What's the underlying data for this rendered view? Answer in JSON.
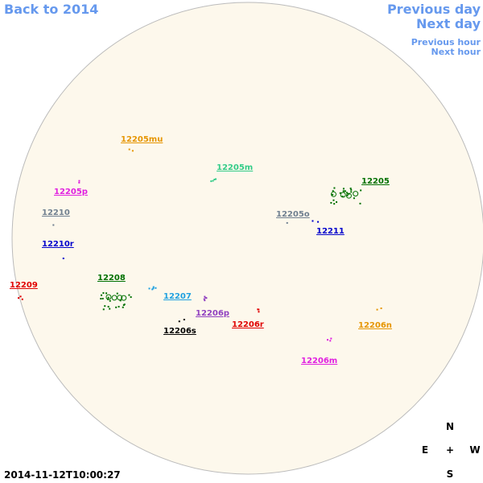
{
  "navigation": {
    "back": "Back to 2014",
    "previous_day": "Previous day",
    "next_day": "Next day",
    "previous_hour": "Previous hour",
    "next_hour": "Next hour"
  },
  "regions": [
    {
      "label": "12205mu",
      "color": "#e69500"
    },
    {
      "label": "12205m",
      "color": "#33cc88"
    },
    {
      "label": "12205",
      "color": "#007000"
    },
    {
      "label": "12205p",
      "color": "#e020e0"
    },
    {
      "label": "12210",
      "color": "#708090"
    },
    {
      "label": "12205o",
      "color": "#708090"
    },
    {
      "label": "12211",
      "color": "#0000cc"
    },
    {
      "label": "12210r",
      "color": "#0000cc"
    },
    {
      "label": "12209",
      "color": "#e00000"
    },
    {
      "label": "12208",
      "color": "#007000"
    },
    {
      "label": "12207",
      "color": "#1ea0e0"
    },
    {
      "label": "12206p",
      "color": "#9040c0"
    },
    {
      "label": "12206r",
      "color": "#e00000"
    },
    {
      "label": "12206s",
      "color": "#000000"
    },
    {
      "label": "12206n",
      "color": "#e69500"
    },
    {
      "label": "12206m",
      "color": "#e020e0"
    }
  ],
  "compass": {
    "north": "N",
    "east": "E",
    "center": "+",
    "west": "W",
    "south": "S"
  },
  "timestamp": "2014-11-12T10:00:27"
}
